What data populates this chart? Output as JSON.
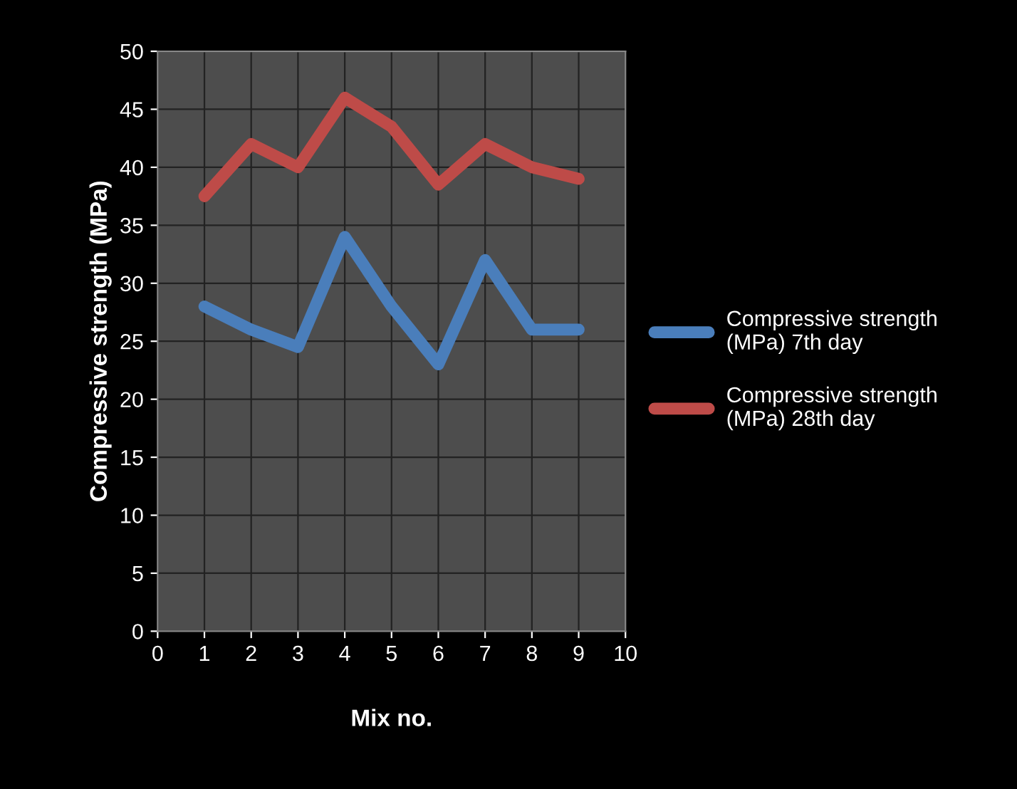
{
  "chart_data": {
    "type": "line",
    "xlabel": "Mix no.",
    "ylabel": "Compressive strength (MPa)",
    "x": [
      1,
      2,
      3,
      4,
      5,
      6,
      7,
      8,
      9
    ],
    "series": [
      {
        "name": "Compressive strength (MPa) 7th day",
        "color": "#4a7ebb",
        "values": [
          28,
          26,
          24.5,
          34,
          28,
          23,
          32,
          26,
          26
        ]
      },
      {
        "name": "Compressive strength (MPa) 28th day",
        "color": "#be4b48",
        "values": [
          37.5,
          42,
          40,
          46,
          43.5,
          38.5,
          42,
          40,
          39
        ]
      }
    ],
    "xlim": [
      0,
      10
    ],
    "xticks": [
      0,
      1,
      2,
      3,
      4,
      5,
      6,
      7,
      8,
      9,
      10
    ],
    "ylim": [
      0,
      50
    ],
    "yticks": [
      0,
      5,
      10,
      15,
      20,
      25,
      30,
      35,
      40,
      45,
      50
    ],
    "grid": true,
    "legend": "right",
    "marker": "none",
    "line_style": "solid"
  }
}
